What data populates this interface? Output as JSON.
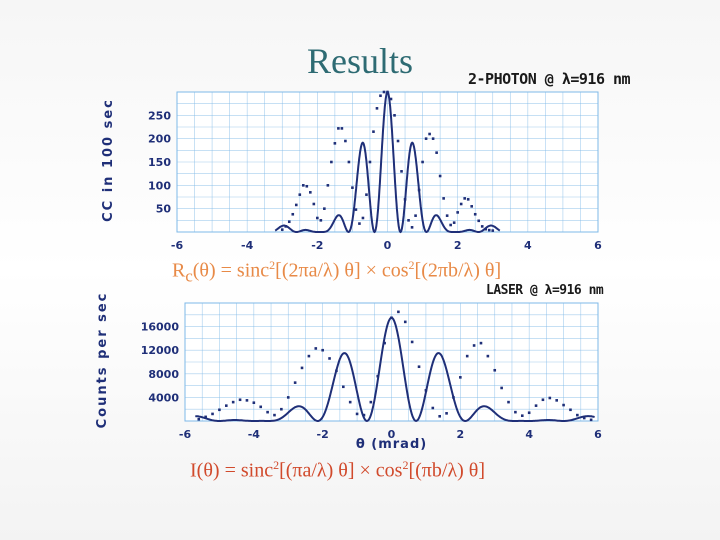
{
  "title": "Results",
  "notes": {
    "top": "2-PHOTON @ λ=916 nm",
    "bottom": "LASER @ λ=916 nm"
  },
  "equations": {
    "top": {
      "prefix": "R",
      "sub": "c",
      "a1": "(θ) = sinc",
      "s1": "2",
      "a2": "[(2πa/λ) θ] × cos",
      "s2": "2",
      "a3": "[(2πb/λ) θ]"
    },
    "bottom": {
      "prefix": "I",
      "sub": "",
      "a1": "(θ) = sinc",
      "s1": "2",
      "a2": "[(πa/λ) θ] × cos",
      "s2": "2",
      "a3": "[(πb/λ) θ]"
    }
  },
  "colors": {
    "curve": "#1f2f78",
    "points": "#1f2f78",
    "grid": "#7fb9e8",
    "title": "#2e6b73"
  },
  "chart_data": [
    {
      "type": "scatter",
      "ylabel": "CC in 100 sec",
      "xlabel": "",
      "xlim": [
        -6,
        6
      ],
      "ylim": [
        0,
        300
      ],
      "xticks": [
        "-6",
        "-4",
        "-2",
        "0",
        "2",
        "4",
        "6"
      ],
      "yticks": [
        "50",
        "100",
        "150",
        "200",
        "250"
      ],
      "grid": true,
      "model": {
        "A": 300,
        "sincK": 0.5,
        "cosK": 1.35,
        "xmin": -3.2,
        "xmax": 3.2
      },
      "series": [
        {
          "x": [
            -3.0,
            -2.9,
            -2.8,
            -2.7,
            -2.6,
            -2.5,
            -2.4,
            -2.3,
            -2.2,
            -2.1,
            -2.0,
            -1.9,
            -1.8,
            -1.7,
            -1.6,
            -1.5,
            -1.4,
            -1.3,
            -1.2,
            -1.1,
            -1.0,
            -0.9,
            -0.8,
            -0.7,
            -0.6,
            -0.5,
            -0.4,
            -0.3,
            -0.2,
            -0.1,
            0.0,
            0.1,
            0.2,
            0.3,
            0.4,
            0.5,
            0.6,
            0.7,
            0.8,
            0.9,
            1.0,
            1.1,
            1.2,
            1.3,
            1.4,
            1.5,
            1.6,
            1.7,
            1.8,
            1.9,
            2.0,
            2.1,
            2.2,
            2.3,
            2.4,
            2.5,
            2.6,
            2.7,
            2.8,
            2.9,
            3.0
          ],
          "y": [
            5,
            12,
            22,
            38,
            58,
            80,
            100,
            98,
            85,
            60,
            30,
            25,
            50,
            100,
            150,
            190,
            222,
            222,
            195,
            150,
            95,
            48,
            18,
            30,
            80,
            150,
            215,
            265,
            292,
            300,
            300,
            285,
            250,
            195,
            130,
            70,
            25,
            10,
            35,
            90,
            150,
            200,
            210,
            200,
            170,
            120,
            72,
            35,
            15,
            20,
            42,
            60,
            72,
            70,
            55,
            38,
            24,
            12,
            6,
            4,
            3
          ]
        }
      ]
    },
    {
      "type": "scatter",
      "ylabel": "Counts per sec",
      "xlabel": "θ (mrad)",
      "xlim": [
        -6,
        6
      ],
      "ylim": [
        0,
        20000
      ],
      "xticks": [
        "-6",
        "-4",
        "-2",
        "0",
        "2",
        "4",
        "6"
      ],
      "yticks": [
        "4000",
        "8000",
        "12000",
        "16000"
      ],
      "grid": true,
      "model": {
        "A": 17500,
        "sincK": 0.25,
        "cosK": 0.7,
        "xmin": -5.7,
        "xmax": 5.9
      },
      "series": [
        {
          "x": [
            -5.6,
            -5.4,
            -5.2,
            -5.0,
            -4.8,
            -4.6,
            -4.4,
            -4.2,
            -4.0,
            -3.8,
            -3.6,
            -3.4,
            -3.2,
            -3.0,
            -2.8,
            -2.6,
            -2.4,
            -2.2,
            -2.0,
            -1.8,
            -1.6,
            -1.4,
            -1.2,
            -1.0,
            -0.8,
            -0.6,
            -0.4,
            -0.2,
            0.0,
            0.2,
            0.4,
            0.6,
            0.8,
            1.0,
            1.2,
            1.4,
            1.6,
            1.8,
            2.0,
            2.2,
            2.4,
            2.6,
            2.8,
            3.0,
            3.2,
            3.4,
            3.6,
            3.8,
            4.0,
            4.2,
            4.4,
            4.6,
            4.8,
            5.0,
            5.2,
            5.4,
            5.6,
            5.8
          ],
          "y": [
            300,
            700,
            1200,
            1900,
            2600,
            3200,
            3600,
            3500,
            3100,
            2400,
            1500,
            1000,
            2000,
            4000,
            6500,
            9000,
            11000,
            12300,
            12000,
            10600,
            8500,
            5800,
            3200,
            1200,
            1000,
            3200,
            7600,
            13200,
            17500,
            18500,
            16800,
            13400,
            9200,
            5200,
            2200,
            800,
            1300,
            4000,
            7400,
            11000,
            12800,
            13200,
            11000,
            8600,
            5600,
            3200,
            1500,
            900,
            1400,
            2600,
            3600,
            3900,
            3500,
            2700,
            1900,
            1000,
            500,
            200
          ]
        }
      ]
    }
  ]
}
